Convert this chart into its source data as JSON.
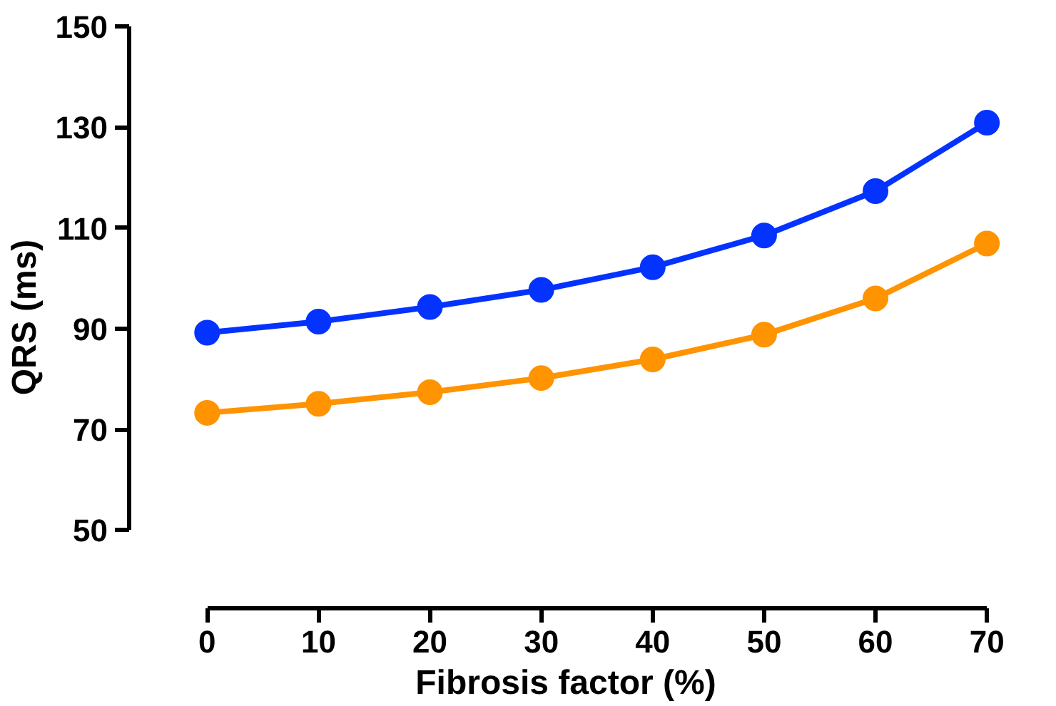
{
  "chart_data": {
    "type": "line",
    "xlabel": "Fibrosis factor (%)",
    "ylabel": "QRS (ms)",
    "x": [
      0,
      10,
      20,
      30,
      40,
      50,
      60,
      70
    ],
    "series": [
      {
        "color": "#0433ff",
        "values": [
          89.2,
          91.4,
          94.3,
          97.7,
          102.2,
          108.5,
          117.3,
          130.9
        ]
      },
      {
        "color": "#ff9300",
        "values": [
          73.3,
          75.1,
          77.4,
          80.2,
          83.9,
          88.8,
          96.0,
          106.9
        ]
      }
    ],
    "xlim": [
      0,
      70
    ],
    "xticks": [
      0,
      10,
      20,
      30,
      40,
      50,
      60,
      70
    ],
    "ylim": [
      50,
      150
    ],
    "yticks": [
      50,
      70,
      90,
      110,
      130,
      150
    ],
    "grid": false,
    "marker": "circle",
    "line_style": "solid"
  }
}
